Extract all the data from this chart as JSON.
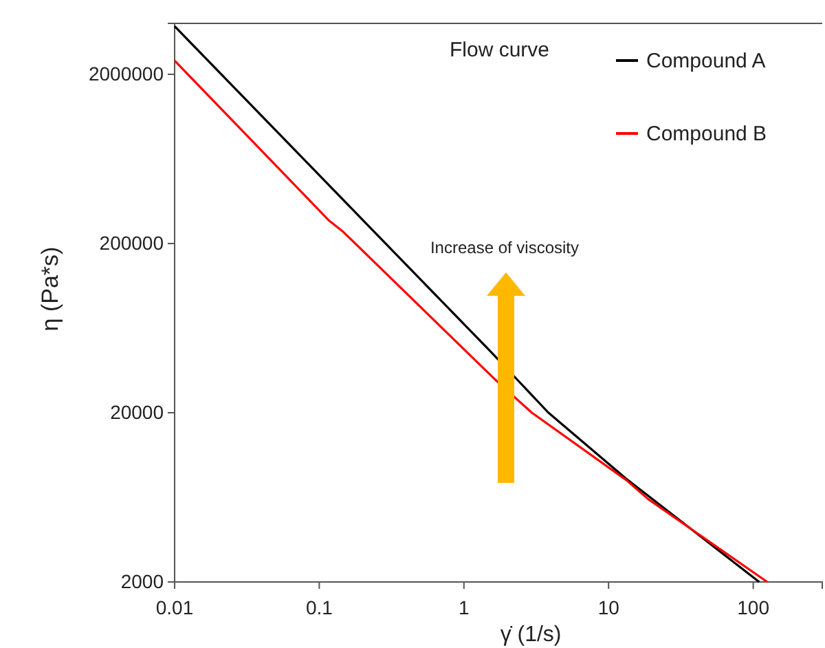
{
  "chart_data": {
    "type": "line",
    "title": "Flow curve",
    "xlabel": "γ̇ (1/s)",
    "ylabel": "η (Pa*s)",
    "log": "xy",
    "xlim": [
      0.01,
      300
    ],
    "xticks": [
      0.01,
      0.1,
      1,
      10,
      100
    ],
    "ylim": [
      2000,
      4000000
    ],
    "yticks": [
      2000,
      20000,
      200000,
      2000000
    ],
    "grid": false,
    "legend": "top right",
    "marker": "none",
    "line_style": "solid",
    "annotations": [
      "Increase of viscosity"
    ],
    "series": [
      {
        "name": "Compound A",
        "color": "#000000",
        "x": [
          0.01,
          0.202,
          1.6,
          3.83,
          13.2,
          110
        ],
        "values": [
          3850000,
          273000,
          44200,
          20050,
          8170,
          2000
        ]
      },
      {
        "name": "Compound B",
        "color": "#ff0000",
        "x": [
          0.01,
          0.117,
          0.146,
          1.6,
          2.94,
          13.2,
          18.8,
          125
        ],
        "values": [
          2410000,
          273000,
          235000,
          32100,
          20050,
          8020,
          6170,
          2000
        ]
      }
    ]
  }
}
